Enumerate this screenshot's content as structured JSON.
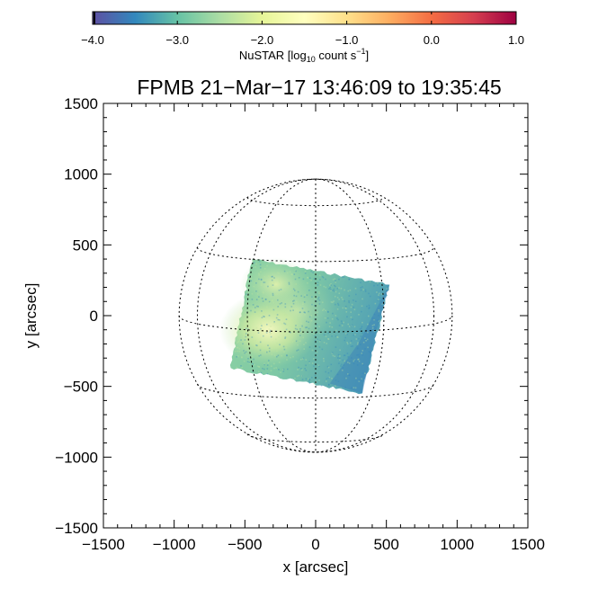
{
  "chart_data": {
    "type": "heatmap",
    "title": "FPMB 21−Mar−17 13:46:09 to 19:35:45",
    "xlabel": "x [arcsec]",
    "ylabel": "y [arcsec]",
    "xlim": [
      -1500,
      1500
    ],
    "ylim": [
      -1500,
      1500
    ],
    "x_ticks": [
      -1500,
      -1000,
      -500,
      0,
      500,
      1000,
      1500
    ],
    "y_ticks": [
      -1500,
      -1000,
      -500,
      0,
      500,
      1000,
      1500
    ],
    "x_tick_labels": [
      "−1500",
      "−1000",
      "−500",
      "0",
      "500",
      "1000",
      "1500"
    ],
    "y_tick_labels": [
      "−1500",
      "−1000",
      "−500",
      "0",
      "500",
      "1000",
      "1500"
    ],
    "solar_radius_arcsec": 965,
    "grid_spacing_deg": 30,
    "colorbar": {
      "label_main": "NuSTAR [log",
      "label_sub": "10",
      "label_units": " count s",
      "label_sup": "−1",
      "label_end": "]",
      "range": [
        -4.0,
        1.0
      ],
      "ticks": [
        -4.0,
        -3.0,
        -2.0,
        -1.0,
        0.0,
        1.0
      ],
      "tick_labels": [
        "−4.0",
        "−3.0",
        "−2.0",
        "−1.0",
        "0.0",
        "1.0"
      ],
      "colormap": [
        "#5e4fa2",
        "#3288bd",
        "#66c2a5",
        "#abdda4",
        "#e6f598",
        "#ffffbf",
        "#fee08b",
        "#fdae61",
        "#f46d43",
        "#d53e4f",
        "#9e0142"
      ]
    },
    "data_footprint": {
      "description": "rotated square NuSTAR field of view",
      "corners_arcsec": [
        [
          -450,
          400
        ],
        [
          520,
          220
        ],
        [
          330,
          -550
        ],
        [
          -600,
          -370
        ]
      ],
      "peak_region_arcsec": [
        -330,
        -100
      ],
      "peak_value_log10": -1.8,
      "edge_value_log10": -3.2
    }
  }
}
